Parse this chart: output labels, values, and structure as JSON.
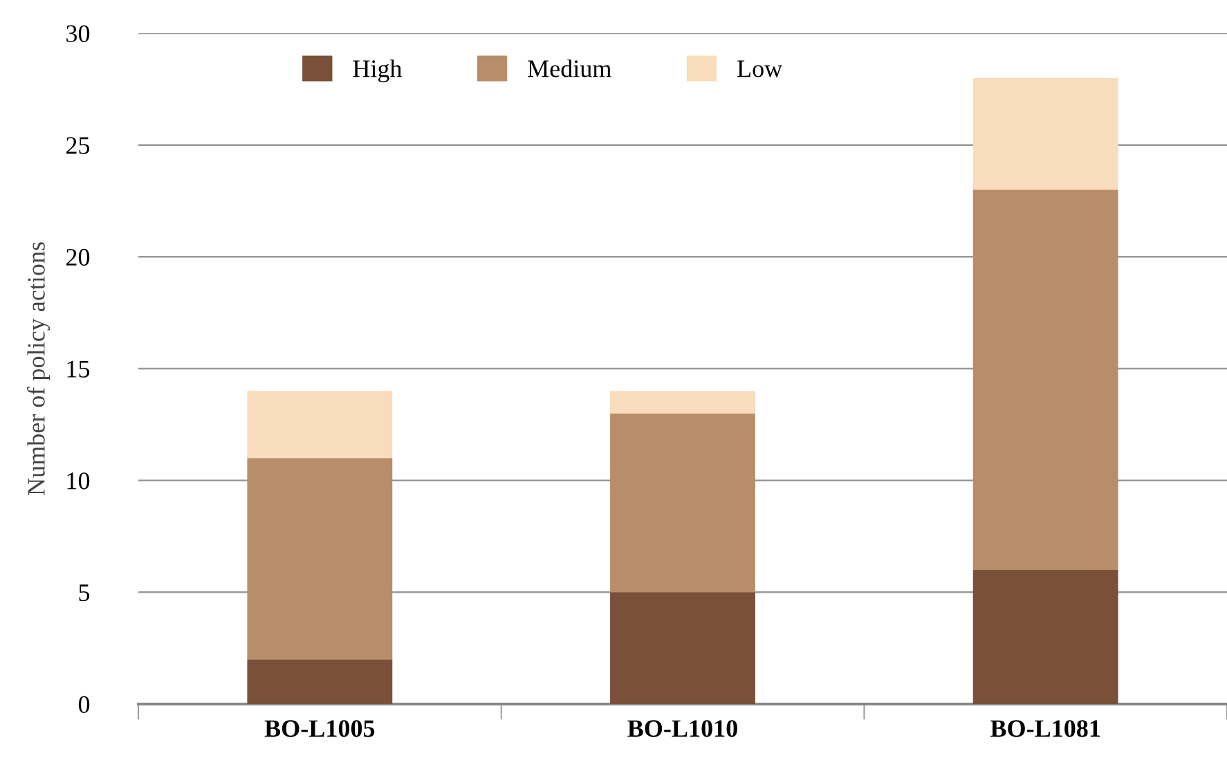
{
  "chart_data": {
    "type": "bar",
    "stacked": true,
    "ylabel": "Number of policy actions",
    "categories": [
      "BO-L1005",
      "BO-L1010",
      "BO-L1081"
    ],
    "series": [
      {
        "name": "High",
        "color": "#7a5038",
        "values": [
          2,
          5,
          6
        ]
      },
      {
        "name": "Medium",
        "color": "#b88d6a",
        "values": [
          9,
          8,
          17
        ]
      },
      {
        "name": "Low",
        "color": "#f8dcbb",
        "values": [
          3,
          1,
          5
        ]
      }
    ],
    "ylim": [
      0,
      30
    ],
    "yticks": [
      0,
      5,
      10,
      15,
      20,
      25,
      30
    ],
    "grid": "y",
    "legend": "top left"
  }
}
